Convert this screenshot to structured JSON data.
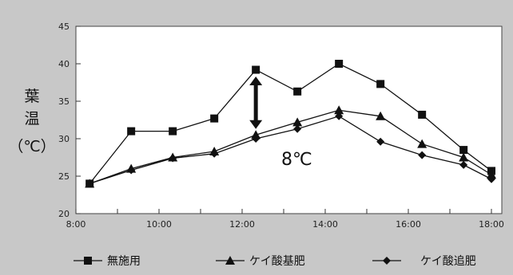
{
  "chart_data": {
    "type": "line",
    "ylabel": "葉温（℃）",
    "ylabel_chars": [
      "葉",
      "温",
      "（℃）"
    ],
    "ylim": [
      20,
      45
    ],
    "yticks": [
      "20",
      "25",
      "30",
      "35",
      "40",
      "45"
    ],
    "x": [
      8.33,
      9.33,
      10.33,
      11.33,
      12.33,
      13.33,
      14.33,
      15.33,
      16.33,
      17.33,
      18.0
    ],
    "xticks": [
      {
        "value": 8,
        "label": "8:00"
      },
      {
        "value": 10,
        "label": "10:00"
      },
      {
        "value": 12,
        "label": "12:00"
      },
      {
        "value": 14,
        "label": "14:00"
      },
      {
        "value": 16,
        "label": "16:00"
      },
      {
        "value": 18,
        "label": "18:00"
      }
    ],
    "series": [
      {
        "name": "無施用",
        "marker": "square",
        "values": [
          24.0,
          31.0,
          31.0,
          32.7,
          39.2,
          36.3,
          40.0,
          37.3,
          33.2,
          28.5,
          25.7
        ]
      },
      {
        "name": "ケイ酸基肥",
        "marker": "triangle",
        "values": [
          24.0,
          26.0,
          27.5,
          28.3,
          30.5,
          32.2,
          33.8,
          33.0,
          29.3,
          27.5,
          25.2
        ]
      },
      {
        "name": "ケイ酸追肥",
        "marker": "diamond",
        "values": [
          24.0,
          25.8,
          27.4,
          28.0,
          30.0,
          31.3,
          33.0,
          29.6,
          27.8,
          26.5,
          24.6
        ]
      }
    ],
    "annotation": {
      "text": "8℃",
      "arrow_at_x": 12.33
    },
    "grid": false,
    "legend": "bottom"
  },
  "colors": {
    "background": "#c8c8c8",
    "plot": "#ffffff",
    "line": "#111111"
  }
}
